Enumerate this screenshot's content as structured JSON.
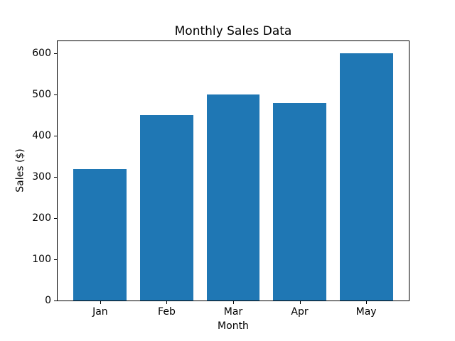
{
  "chart_data": {
    "type": "bar",
    "title": "Monthly Sales Data",
    "xlabel": "Month",
    "ylabel": "Sales ($)",
    "categories": [
      "Jan",
      "Feb",
      "Mar",
      "Apr",
      "May"
    ],
    "values": [
      320,
      450,
      500,
      480,
      600
    ],
    "yticks": [
      0,
      100,
      200,
      300,
      400,
      500,
      600
    ],
    "ylim": [
      0,
      630
    ],
    "xlim": [
      -0.64,
      4.64
    ],
    "bar_width": 0.8,
    "bar_color": "#1f77b4",
    "spine_color": "#000000",
    "background_color": "#ffffff",
    "grid": false,
    "legend": false
  }
}
